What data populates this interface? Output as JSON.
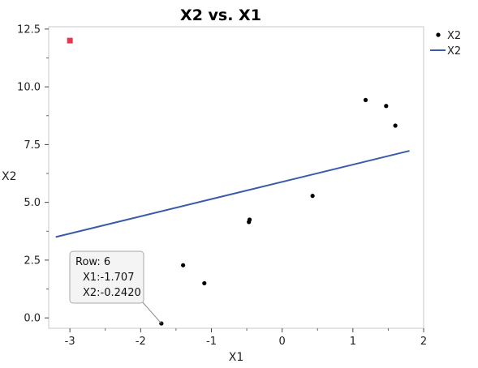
{
  "chart_data": {
    "type": "scatter",
    "title": "X2 vs. X1",
    "xlabel": "X1",
    "ylabel": "X2",
    "xlim": [
      -3.3,
      2.0
    ],
    "ylim": [
      -0.45,
      12.6
    ],
    "x_ticks": [
      -3,
      -2,
      -1,
      0,
      1,
      2
    ],
    "y_ticks": [
      0.0,
      2.5,
      5.0,
      7.5,
      10.0,
      12.5
    ],
    "x_tick_labels": [
      "-3",
      "-2",
      "-1",
      "0",
      "1",
      "2"
    ],
    "y_tick_labels": [
      "0.0",
      "2.5",
      "5.0",
      "7.5",
      "10.0",
      "12.5"
    ],
    "grid": false,
    "legend_position": "top-right",
    "series": [
      {
        "name": "X2",
        "kind": "points",
        "color": "#000000",
        "points": [
          {
            "x": -1.707,
            "y": -0.242
          },
          {
            "x": -1.4,
            "y": 2.28
          },
          {
            "x": -1.1,
            "y": 1.5
          },
          {
            "x": -0.47,
            "y": 4.15
          },
          {
            "x": -0.46,
            "y": 4.25
          },
          {
            "x": 0.43,
            "y": 5.28
          },
          {
            "x": 1.18,
            "y": 9.43
          },
          {
            "x": 1.47,
            "y": 9.17
          },
          {
            "x": 1.6,
            "y": 8.32
          }
        ]
      },
      {
        "name": "X2",
        "kind": "line",
        "color": "#3a5ca8",
        "points": [
          {
            "x": -3.2,
            "y": 3.5
          },
          {
            "x": 1.8,
            "y": 7.23
          }
        ]
      }
    ],
    "excluded_points": [
      {
        "x": -3.0,
        "y": 12.0,
        "color": "#e8364f"
      }
    ],
    "tooltip": {
      "lines": [
        "Row: 6",
        "X1:-1.707",
        "X2:-0.2420"
      ],
      "point": {
        "x": -1.707,
        "y": -0.242
      }
    }
  }
}
